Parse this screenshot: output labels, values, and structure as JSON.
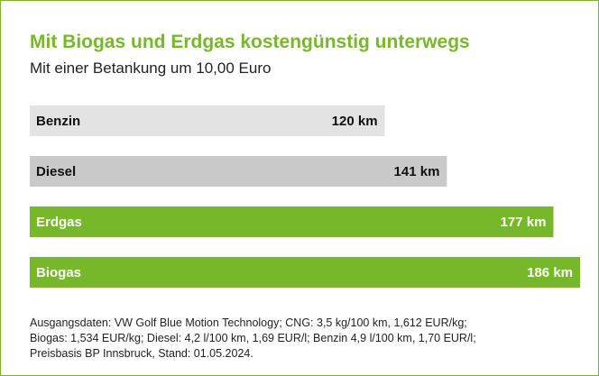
{
  "chart_data": {
    "type": "bar",
    "orientation": "horizontal",
    "title": "Mit Biogas und Erdgas kostengünstig unterwegs",
    "subtitle": "Mit einer Betankung um 10,00 Euro",
    "categories": [
      "Benzin",
      "Diesel",
      "Erdgas",
      "Biogas"
    ],
    "values": [
      120,
      141,
      177,
      186
    ],
    "value_labels": [
      "120 km",
      "141 km",
      "177 km",
      "186 km"
    ],
    "colors": [
      "#e3e3e3",
      "#c9c9c9",
      "#76b82a",
      "#76b82a"
    ],
    "xlim": [
      0,
      186
    ],
    "footnote": [
      "Ausgangsdaten: VW Golf Blue Motion Technology; CNG: 3,5 kg/100 km, 1,612 EUR/kg;",
      "Biogas: 1,534 EUR/kg; Diesel: 4,2 l/100 km, 1,69 EUR/l; Benzin 4,9 l/100 km, 1,70 EUR/l;",
      "Preisbasis BP Innsbruck, Stand: 01.05.2024."
    ]
  }
}
